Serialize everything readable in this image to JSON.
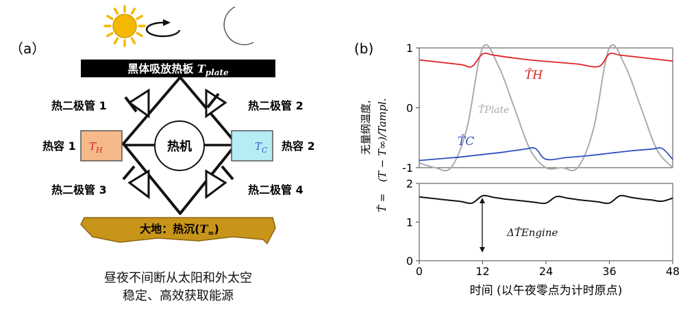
{
  "panel_a": {
    "label": "（a）",
    "plate_label": "黑体吸放热板 ",
    "plate_symbol": "T",
    "plate_sub": "plate",
    "diode1": "热二极管 1",
    "diode2": "热二极管 2",
    "diode3": "热二极管 3",
    "diode4": "热二极管 4",
    "cap1": "热容 1",
    "cap2": "热容 2",
    "th_symbol": "T",
    "th_sub": "H",
    "tc_symbol": "T",
    "tc_sub": "C",
    "engine": "热机",
    "ground_label": "大地：热沉(",
    "ground_symbol": "T",
    "ground_sub": "∞",
    "ground_close": ")",
    "caption_line1": "昼夜不间断从太阳和外太空",
    "caption_line2": "稳定、高效获取能源",
    "colors": {
      "hot_fill": "#f6b98a",
      "cold_fill": "#b6ecf4",
      "sun": "#f5b800",
      "moon": "#888888",
      "ground": "#c8951a",
      "hot_text": "#d32020",
      "cold_text": "#2f5fd0"
    }
  },
  "panel_b": {
    "label": "(b)",
    "ylabel_top_line1": "无量纲温度,",
    "ylabel_top_line2": "(T − T∞)/Tampl.",
    "ylabel_bottom": "T̂ = ",
    "xlabel": "时间 (以午夜零点为计时原点)",
    "label_TH": "T̂H",
    "label_Tplate": "T̂Plate",
    "label_TC": "T̂C",
    "label_DeltaT": "ΔT̂Engine"
  },
  "chart_data": [
    {
      "type": "line",
      "xlim": [
        0,
        48
      ],
      "ylim": [
        -1,
        1
      ],
      "yticks": [
        -1,
        0,
        1
      ],
      "series": [
        {
          "name": "T̂H",
          "color": "#e02020",
          "x": [
            0,
            4,
            8,
            10,
            12,
            14,
            18,
            22,
            26,
            30,
            34,
            36,
            38,
            42,
            46,
            48
          ],
          "values": [
            0.8,
            0.76,
            0.72,
            0.69,
            0.9,
            0.88,
            0.83,
            0.79,
            0.76,
            0.73,
            0.69,
            0.9,
            0.88,
            0.84,
            0.8,
            0.78
          ]
        },
        {
          "name": "T̂Plate",
          "color": "#aaaaaa",
          "x": [
            0,
            3,
            6,
            9,
            12,
            15,
            18,
            21,
            24,
            27,
            30,
            33,
            36,
            39,
            42,
            45,
            48
          ],
          "values": [
            -0.92,
            -1.0,
            -1.0,
            -0.35,
            1.0,
            0.7,
            0.0,
            -0.7,
            -1.0,
            -1.0,
            -1.0,
            -0.35,
            1.0,
            0.7,
            0.0,
            -0.7,
            -1.0
          ]
        },
        {
          "name": "T̂C",
          "color": "#3050c0",
          "x": [
            0,
            4,
            8,
            12,
            16,
            20,
            22,
            24,
            28,
            32,
            36,
            40,
            44,
            46,
            48
          ],
          "values": [
            -0.88,
            -0.85,
            -0.82,
            -0.78,
            -0.74,
            -0.69,
            -0.68,
            -0.86,
            -0.83,
            -0.8,
            -0.76,
            -0.72,
            -0.69,
            -0.68,
            -0.86
          ]
        }
      ]
    },
    {
      "type": "line",
      "xlim": [
        0,
        48
      ],
      "ylim": [
        0,
        2
      ],
      "xticks": [
        0,
        12,
        24,
        36,
        48
      ],
      "yticks": [
        0,
        1,
        2
      ],
      "series": [
        {
          "name": "ΔT̂Engine",
          "color": "#111111",
          "x": [
            0,
            2,
            4,
            6,
            8,
            10,
            12,
            14,
            16,
            18,
            20,
            22,
            24,
            26,
            28,
            30,
            32,
            34,
            36,
            38,
            40,
            42,
            44,
            46,
            48
          ],
          "values": [
            1.65,
            1.62,
            1.59,
            1.56,
            1.53,
            1.49,
            1.68,
            1.64,
            1.6,
            1.57,
            1.54,
            1.51,
            1.49,
            1.66,
            1.62,
            1.58,
            1.55,
            1.52,
            1.49,
            1.68,
            1.64,
            1.6,
            1.57,
            1.54,
            1.62
          ]
        }
      ]
    }
  ]
}
